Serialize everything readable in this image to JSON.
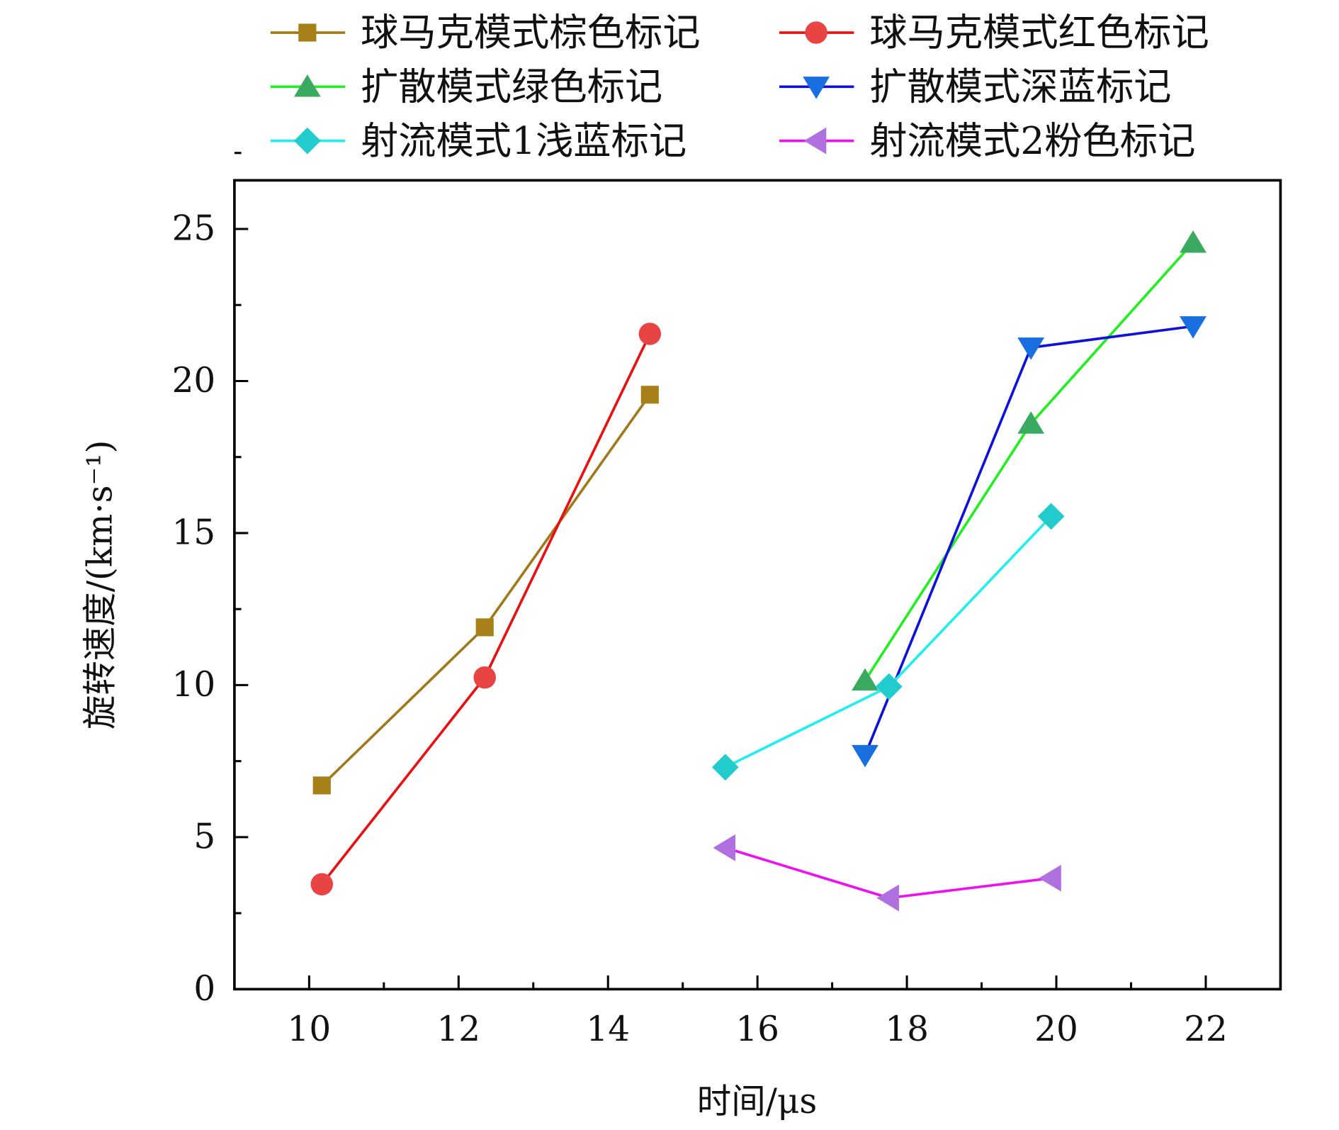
{
  "chart_data": {
    "type": "line",
    "title": "",
    "xlabel": "时间/μs",
    "ylabel": "旋转速度/(km·s⁻¹)",
    "xlim": [
      9,
      23
    ],
    "ylim": [
      0,
      26.6
    ],
    "xticks": [
      10,
      12,
      14,
      16,
      18,
      20,
      22
    ],
    "xtick_labels": [
      "10",
      "12",
      "14",
      "16",
      "18",
      "20",
      "22"
    ],
    "yticks": [
      0,
      5,
      10,
      15,
      20,
      25
    ],
    "ytick_labels": [
      "0",
      "5",
      "10",
      "15",
      "20",
      "25"
    ],
    "grid": false,
    "legend_position": "top, above plot, 2 columns",
    "series": [
      {
        "name": "球马克模式棕色标记",
        "marker": "square",
        "line_color": "#a07a1a",
        "marker_color": "#a8801a",
        "x": [
          10.17,
          12.35,
          14.56
        ],
        "y": [
          6.7,
          11.9,
          19.55
        ]
      },
      {
        "name": "球马克模式红色标记",
        "marker": "circle",
        "line_color": "#e81010",
        "marker_color": "#e84444",
        "x": [
          10.17,
          12.35,
          14.56
        ],
        "y": [
          3.45,
          10.25,
          21.55
        ]
      },
      {
        "name": "扩散模式绿色标记",
        "marker": "triangle-up",
        "line_color": "#22ee22",
        "marker_color": "#3aaa60",
        "x": [
          17.44,
          19.66,
          21.83
        ],
        "y": [
          10.15,
          18.6,
          24.55
        ]
      },
      {
        "name": "扩散模式深蓝标记",
        "marker": "triangle-down",
        "line_color": "#1010dd",
        "marker_color": "#1a6fe0",
        "x": [
          17.44,
          19.66,
          21.83
        ],
        "y": [
          7.7,
          21.1,
          21.8
        ]
      },
      {
        "name": "射流模式1浅蓝标记",
        "marker": "diamond",
        "line_color": "#22eeee",
        "marker_color": "#22cccc",
        "x": [
          15.57,
          17.76,
          19.93
        ],
        "y": [
          7.3,
          9.95,
          15.55
        ]
      },
      {
        "name": "射流模式2粉色标记",
        "marker": "triangle-left",
        "line_color": "#ee11ee",
        "marker_color": "#b070e0",
        "x": [
          15.57,
          17.76,
          19.93
        ],
        "y": [
          4.65,
          3.0,
          3.65
        ]
      }
    ]
  }
}
